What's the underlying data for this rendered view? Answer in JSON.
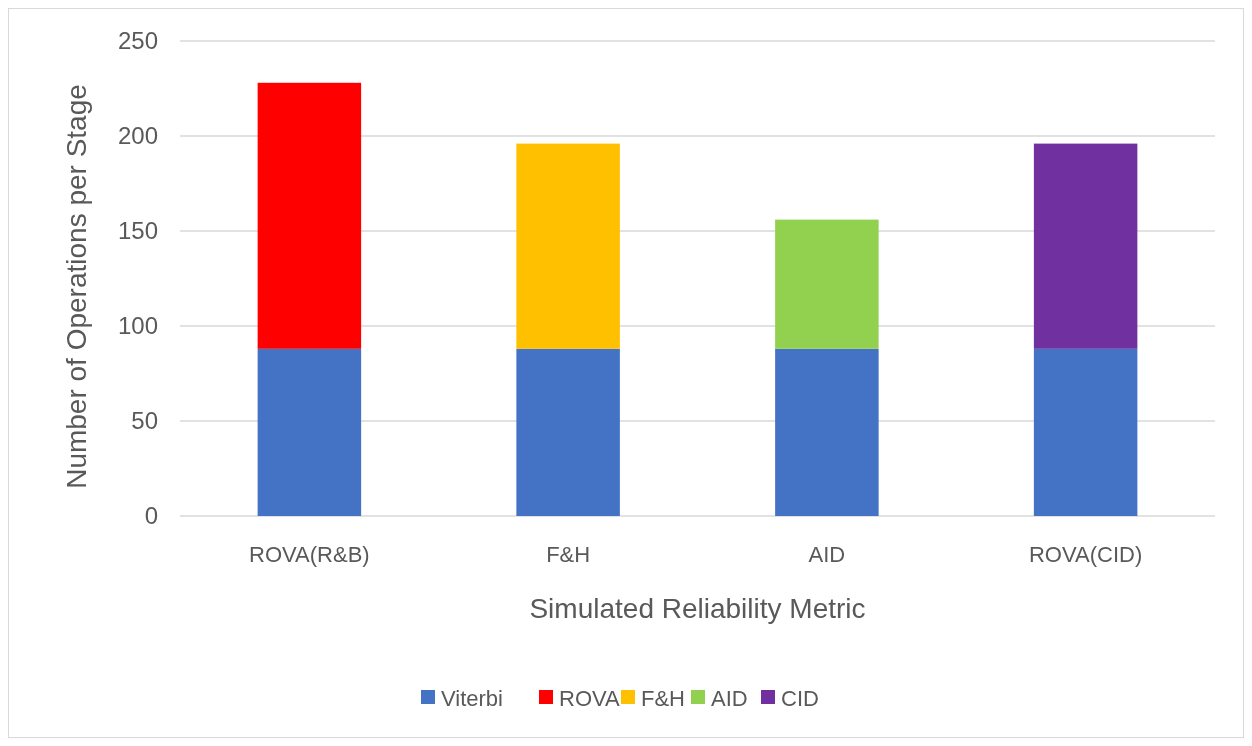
{
  "chart_data": {
    "type": "bar",
    "stacked": true,
    "xlabel": "Simulated Reliability Metric",
    "ylabel": "Number of Operations per Stage",
    "categories": [
      "ROVA(R&B)",
      "F&H",
      "AID",
      "ROVA(CID)"
    ],
    "series": [
      {
        "name": "Viterbi",
        "color": "#4472c4",
        "values": [
          88,
          88,
          88,
          88
        ]
      },
      {
        "name": "ROVA",
        "color": "#ff0000",
        "values": [
          140,
          null,
          null,
          null
        ]
      },
      {
        "name": "F&H",
        "color": "#ffc000",
        "values": [
          null,
          108,
          null,
          null
        ]
      },
      {
        "name": "AID",
        "color": "#92d050",
        "values": [
          null,
          null,
          68,
          null
        ]
      },
      {
        "name": "CID",
        "color": "#7030a0",
        "values": [
          null,
          null,
          null,
          108
        ]
      }
    ],
    "ylim": [
      0,
      250
    ],
    "yticks": [
      0,
      50,
      100,
      150,
      200,
      250
    ],
    "grid": "y",
    "legend": "bottom"
  }
}
